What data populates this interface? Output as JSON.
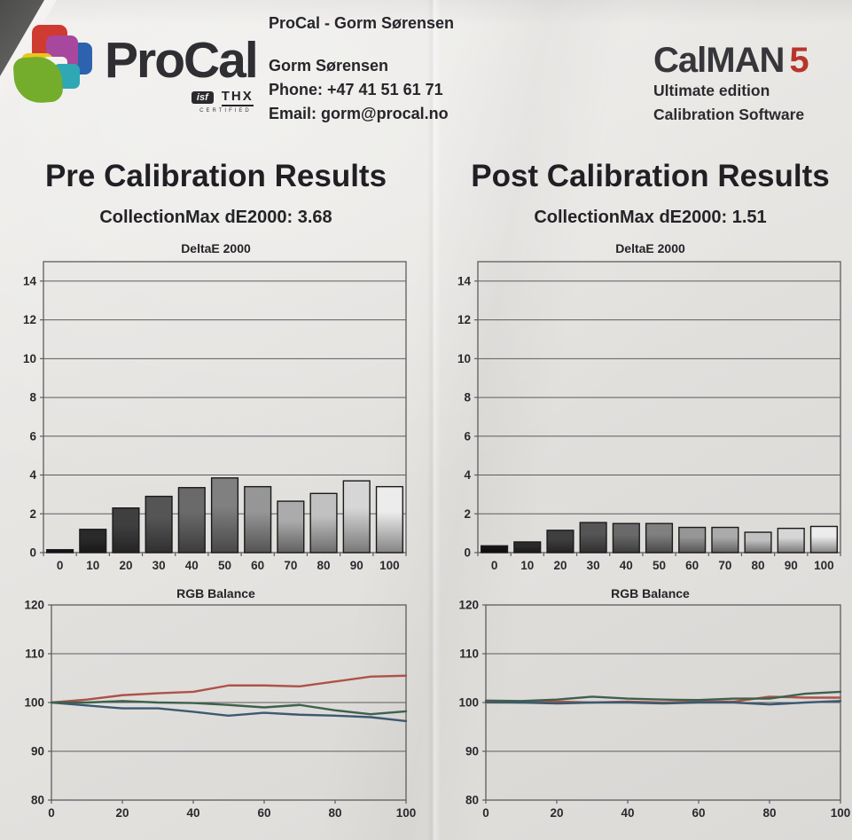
{
  "header": {
    "doc_title": "ProCal - Gorm Sørensen",
    "logo": {
      "brand": "ProCal",
      "isf_label": "isf",
      "thx_label": "THX",
      "certified_label": "CERTIFIED"
    },
    "contact": {
      "name": "Gorm Sørensen",
      "phone": "Phone: +47 41 51 61 71",
      "email": "Email: gorm@procal.no"
    },
    "software": {
      "brand": "CalMAN",
      "version": "5",
      "edition": "Ultimate edition",
      "tagline": "Calibration Software"
    }
  },
  "sections": {
    "pre": {
      "title": "Pre Calibration Results",
      "summary": "CollectionMax dE2000: 3.68"
    },
    "post": {
      "title": "Post Calibration Results",
      "summary": "CollectionMax dE2000: 1.51"
    }
  },
  "colors": {
    "paper": "#e7e5e2",
    "ink": "#26262a",
    "grid": "#5c5c60",
    "calman_red": "#b9352c",
    "red_line": "#ad5347",
    "green_line": "#3e614e",
    "blue_line": "#3b5a72"
  },
  "chart_data": [
    {
      "id": "pre-deltae",
      "type": "bar",
      "title": "DeltaE 2000",
      "categories": [
        "0",
        "10",
        "20",
        "30",
        "40",
        "50",
        "60",
        "70",
        "80",
        "90",
        "100"
      ],
      "values": [
        0.15,
        1.2,
        2.3,
        2.9,
        3.35,
        3.85,
        3.4,
        2.65,
        3.05,
        3.7,
        3.4
      ],
      "ylim": [
        0,
        15
      ],
      "ytick_step": 2,
      "bar_fill": "grayscale-gradient",
      "grid": true,
      "legend": "none"
    },
    {
      "id": "post-deltae",
      "type": "bar",
      "title": "DeltaE 2000",
      "categories": [
        "0",
        "10",
        "20",
        "30",
        "40",
        "50",
        "60",
        "70",
        "80",
        "90",
        "100"
      ],
      "values": [
        0.35,
        0.55,
        1.15,
        1.55,
        1.5,
        1.5,
        1.3,
        1.3,
        1.05,
        1.25,
        1.35
      ],
      "ylim": [
        0,
        15
      ],
      "ytick_step": 2,
      "bar_fill": "grayscale-gradient",
      "grid": true,
      "legend": "none"
    },
    {
      "id": "pre-rgb",
      "type": "line",
      "title": "RGB Balance",
      "x": [
        0,
        10,
        20,
        30,
        40,
        50,
        60,
        70,
        80,
        90,
        100
      ],
      "xticks": [
        0,
        20,
        40,
        60,
        80,
        100
      ],
      "ylim": [
        80,
        120
      ],
      "ytick_step": 10,
      "grid": true,
      "legend": "none",
      "series": [
        {
          "name": "Red",
          "color": "#ad5347",
          "values": [
            100,
            100.6,
            101.5,
            101.9,
            102.2,
            103.5,
            103.5,
            103.3,
            104.3,
            105.3,
            105.5
          ]
        },
        {
          "name": "Blue",
          "color": "#3b5a72",
          "values": [
            100,
            99.4,
            98.8,
            98.8,
            98.1,
            97.3,
            97.9,
            97.5,
            97.3,
            97.0,
            96.2
          ]
        },
        {
          "name": "Green",
          "color": "#3e614e",
          "values": [
            100,
            100,
            100.3,
            100,
            99.9,
            99.5,
            99.0,
            99.5,
            98.4,
            97.6,
            98.2
          ]
        }
      ]
    },
    {
      "id": "post-rgb",
      "type": "line",
      "title": "RGB Balance",
      "x": [
        0,
        10,
        20,
        30,
        40,
        50,
        60,
        70,
        80,
        90,
        100
      ],
      "xticks": [
        0,
        20,
        40,
        60,
        80,
        100
      ],
      "ylim": [
        80,
        120
      ],
      "ytick_step": 10,
      "grid": true,
      "legend": "none",
      "series": [
        {
          "name": "Red",
          "color": "#ad5347",
          "values": [
            100,
            100,
            100.2,
            100,
            100.2,
            100,
            100.2,
            100.2,
            101.2,
            101,
            101
          ]
        },
        {
          "name": "Blue",
          "color": "#3b5a72",
          "values": [
            100.1,
            100,
            99.8,
            100,
            100,
            99.8,
            100,
            100,
            99.6,
            100,
            100.3
          ]
        },
        {
          "name": "Green",
          "color": "#3e614e",
          "values": [
            100.4,
            100.3,
            100.6,
            101.2,
            100.8,
            100.6,
            100.5,
            100.8,
            100.8,
            101.8,
            102.2
          ]
        }
      ]
    }
  ]
}
